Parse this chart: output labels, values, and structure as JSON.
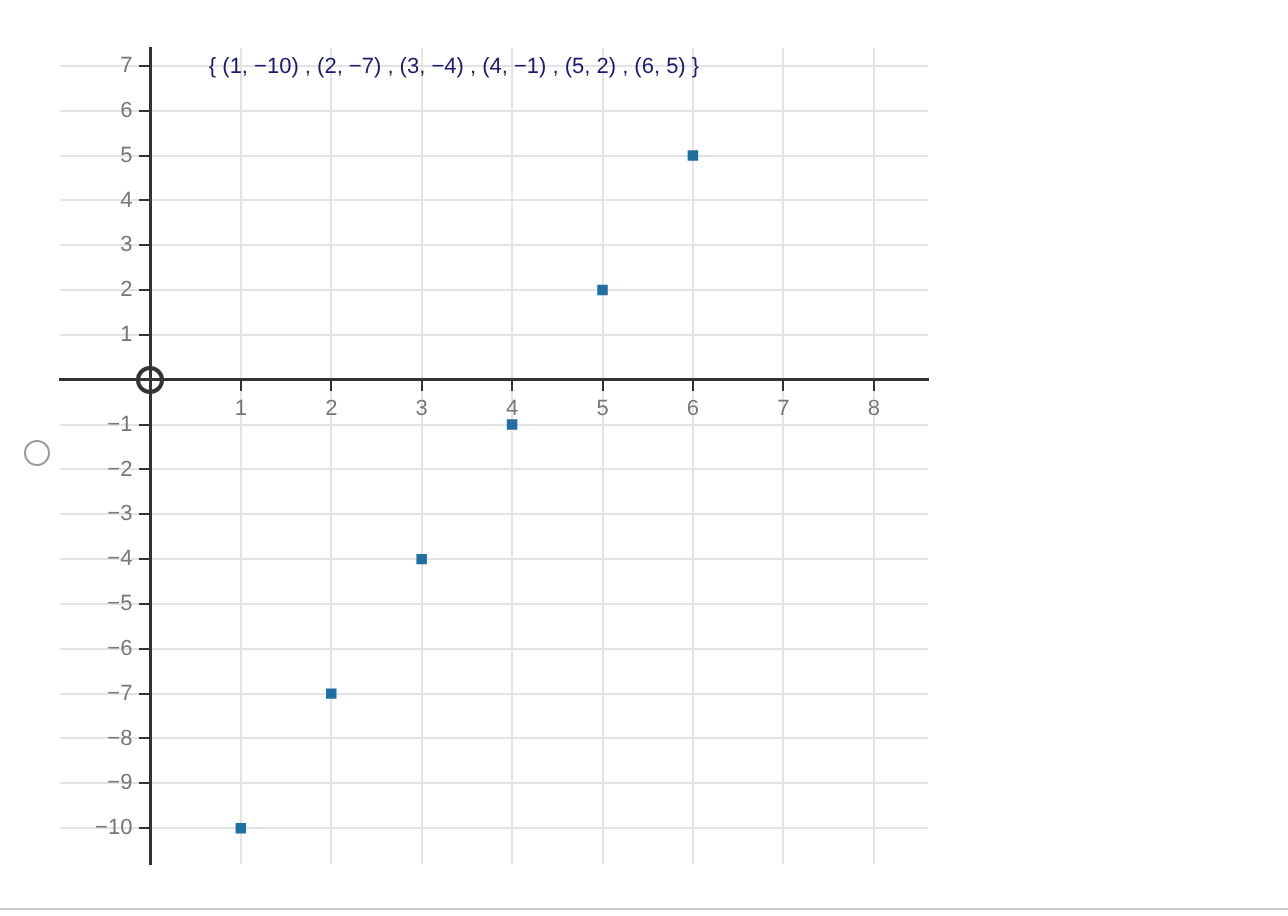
{
  "chart_data": {
    "type": "scatter",
    "annotations": [
      "{ (1, −10) , (2, −7) , (3, −4) , (4, −1) , (5, 2) , (6, 5) }"
    ],
    "x": [
      1,
      2,
      3,
      4,
      5,
      6
    ],
    "values": [
      -10,
      -7,
      -4,
      -1,
      2,
      5
    ],
    "color": "#1f6fa3",
    "marker": "square",
    "xlim": [
      -1,
      8.6
    ],
    "ylim": [
      -10.8,
      7.4
    ],
    "xticks": [
      1,
      2,
      3,
      4,
      5,
      6,
      7,
      8
    ],
    "yticks": [
      {
        "value": -10,
        "label": "−10"
      },
      {
        "value": -9,
        "label": "−9"
      },
      {
        "value": -8,
        "label": "−8"
      },
      {
        "value": -7,
        "label": "−7"
      },
      {
        "value": -6,
        "label": "−6"
      },
      {
        "value": -5,
        "label": "−5"
      },
      {
        "value": -4,
        "label": "−4"
      },
      {
        "value": -3,
        "label": "−3"
      },
      {
        "value": -2,
        "label": "−2"
      },
      {
        "value": -1,
        "label": "−1"
      },
      1,
      2,
      3,
      4,
      5,
      6,
      7
    ],
    "grid": true,
    "legend": false
  }
}
